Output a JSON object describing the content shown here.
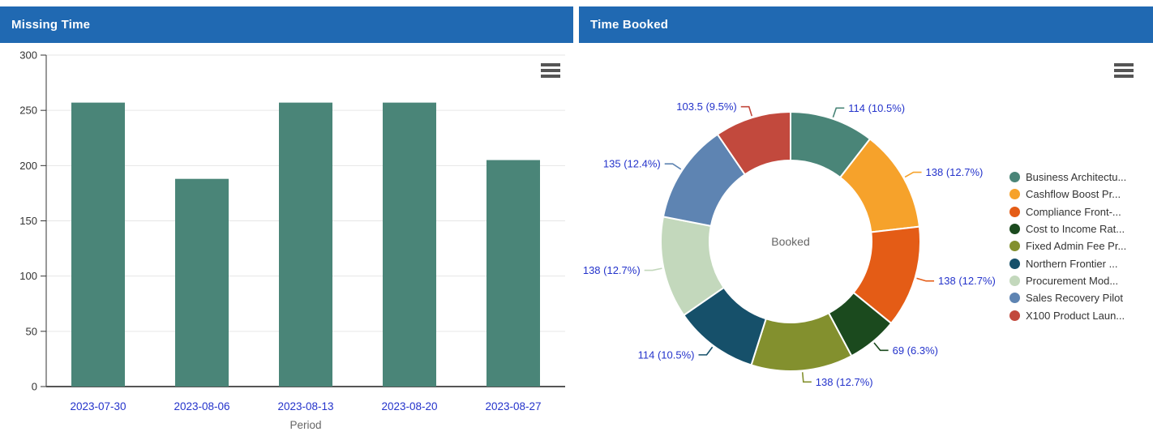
{
  "panels": {
    "missing_time": {
      "title": "Missing Time",
      "header_color": "#2069B2"
    },
    "time_booked": {
      "title": "Time Booked",
      "header_color": "#2069B2"
    }
  },
  "icons": {
    "context_menu": "hamburger-menu"
  },
  "chart_data": [
    {
      "panel": "missing_time",
      "type": "bar",
      "title": "Missing Time",
      "categories": [
        "2023-07-30",
        "2023-08-06",
        "2023-08-13",
        "2023-08-20",
        "2023-08-27"
      ],
      "values": [
        257,
        188,
        257,
        257,
        205
      ],
      "xlabel": "Period",
      "ylabel": "",
      "ylim": [
        0,
        300
      ],
      "yticks": [
        0,
        50,
        100,
        150,
        200,
        250,
        300
      ],
      "grid": true,
      "bar_color": "#4A8578",
      "grid_color": "#E6E6E6",
      "axis_color": "#333333",
      "tick_label_color": "#333333",
      "category_label_color": "#2433CB",
      "xlabel_color": "#666666"
    },
    {
      "panel": "time_booked",
      "type": "donut",
      "center_label": "Booked",
      "center_label_color": "#666666",
      "data_label_color": "#2433CB",
      "legend_position": "right",
      "slices": [
        {
          "name": "Business Architectu...",
          "value": 114,
          "label": "114 (10.5%)",
          "color": "#4A8578"
        },
        {
          "name": "Cashflow Boost Pr...",
          "value": 138,
          "label": "138 (12.7%)",
          "color": "#F6A22B"
        },
        {
          "name": "Compliance Front-...",
          "value": 138,
          "label": "138 (12.7%)",
          "color": "#E45C16"
        },
        {
          "name": "Cost to Income Rat...",
          "value": 69,
          "label": "69 (6.3%)",
          "color": "#1B4A1E"
        },
        {
          "name": "Fixed Admin Fee Pr...",
          "value": 138,
          "label": "138 (12.7%)",
          "color": "#83902E"
        },
        {
          "name": "Northern Frontier ...",
          "value": 114,
          "label": "114 (10.5%)",
          "color": "#16506A"
        },
        {
          "name": "Procurement Mod...",
          "value": 138,
          "label": "138 (12.7%)",
          "color": "#C3D8BC"
        },
        {
          "name": "Sales Recovery Pilot",
          "value": 135,
          "label": "135 (12.4%)",
          "color": "#5E84B2"
        },
        {
          "name": "X100 Product Laun...",
          "value": 103.5,
          "label": "103.5 (9.5%)",
          "color": "#C2493D"
        }
      ]
    }
  ]
}
